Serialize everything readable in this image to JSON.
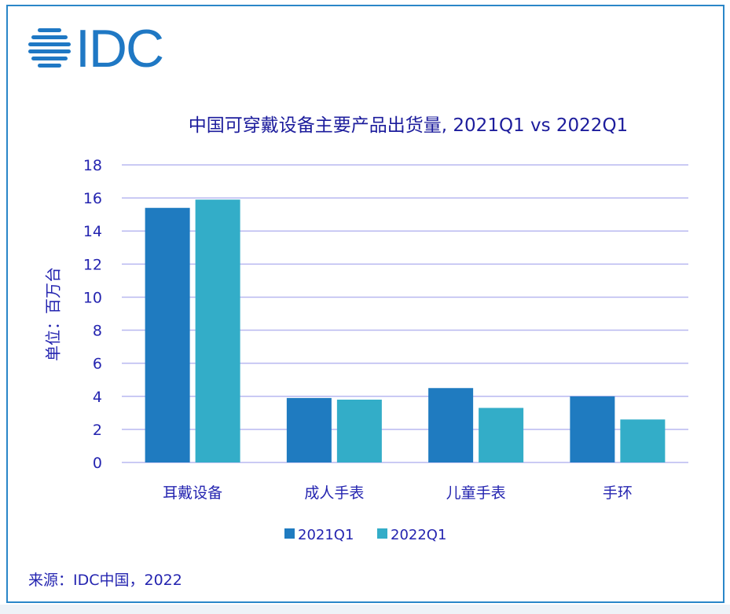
{
  "logo": {
    "text": "IDC",
    "color": "#1f78c4"
  },
  "title": "中国可穿戴设备主要产品出货量, 2021Q1 vs 2022Q1",
  "source": "来源：IDC中国，2022",
  "chart_data": {
    "type": "bar",
    "title": "中国可穿戴设备主要产品出货量, 2021Q1 vs 2022Q1",
    "ylabel": "单位：百万台",
    "xlabel": "",
    "ylim": [
      0,
      18
    ],
    "yticks": [
      0,
      2,
      4,
      6,
      8,
      10,
      12,
      14,
      16,
      18
    ],
    "grid": true,
    "legend": "bottom",
    "categories": [
      "耳戴设备",
      "成人手表",
      "儿童手表",
      "手环"
    ],
    "series": [
      {
        "name": "2021Q1",
        "color": "#1f7bc0",
        "values": [
          15.4,
          3.9,
          4.5,
          4.0
        ]
      },
      {
        "name": "2022Q1",
        "color": "#33adc8",
        "values": [
          15.9,
          3.8,
          3.3,
          2.6
        ]
      }
    ]
  }
}
